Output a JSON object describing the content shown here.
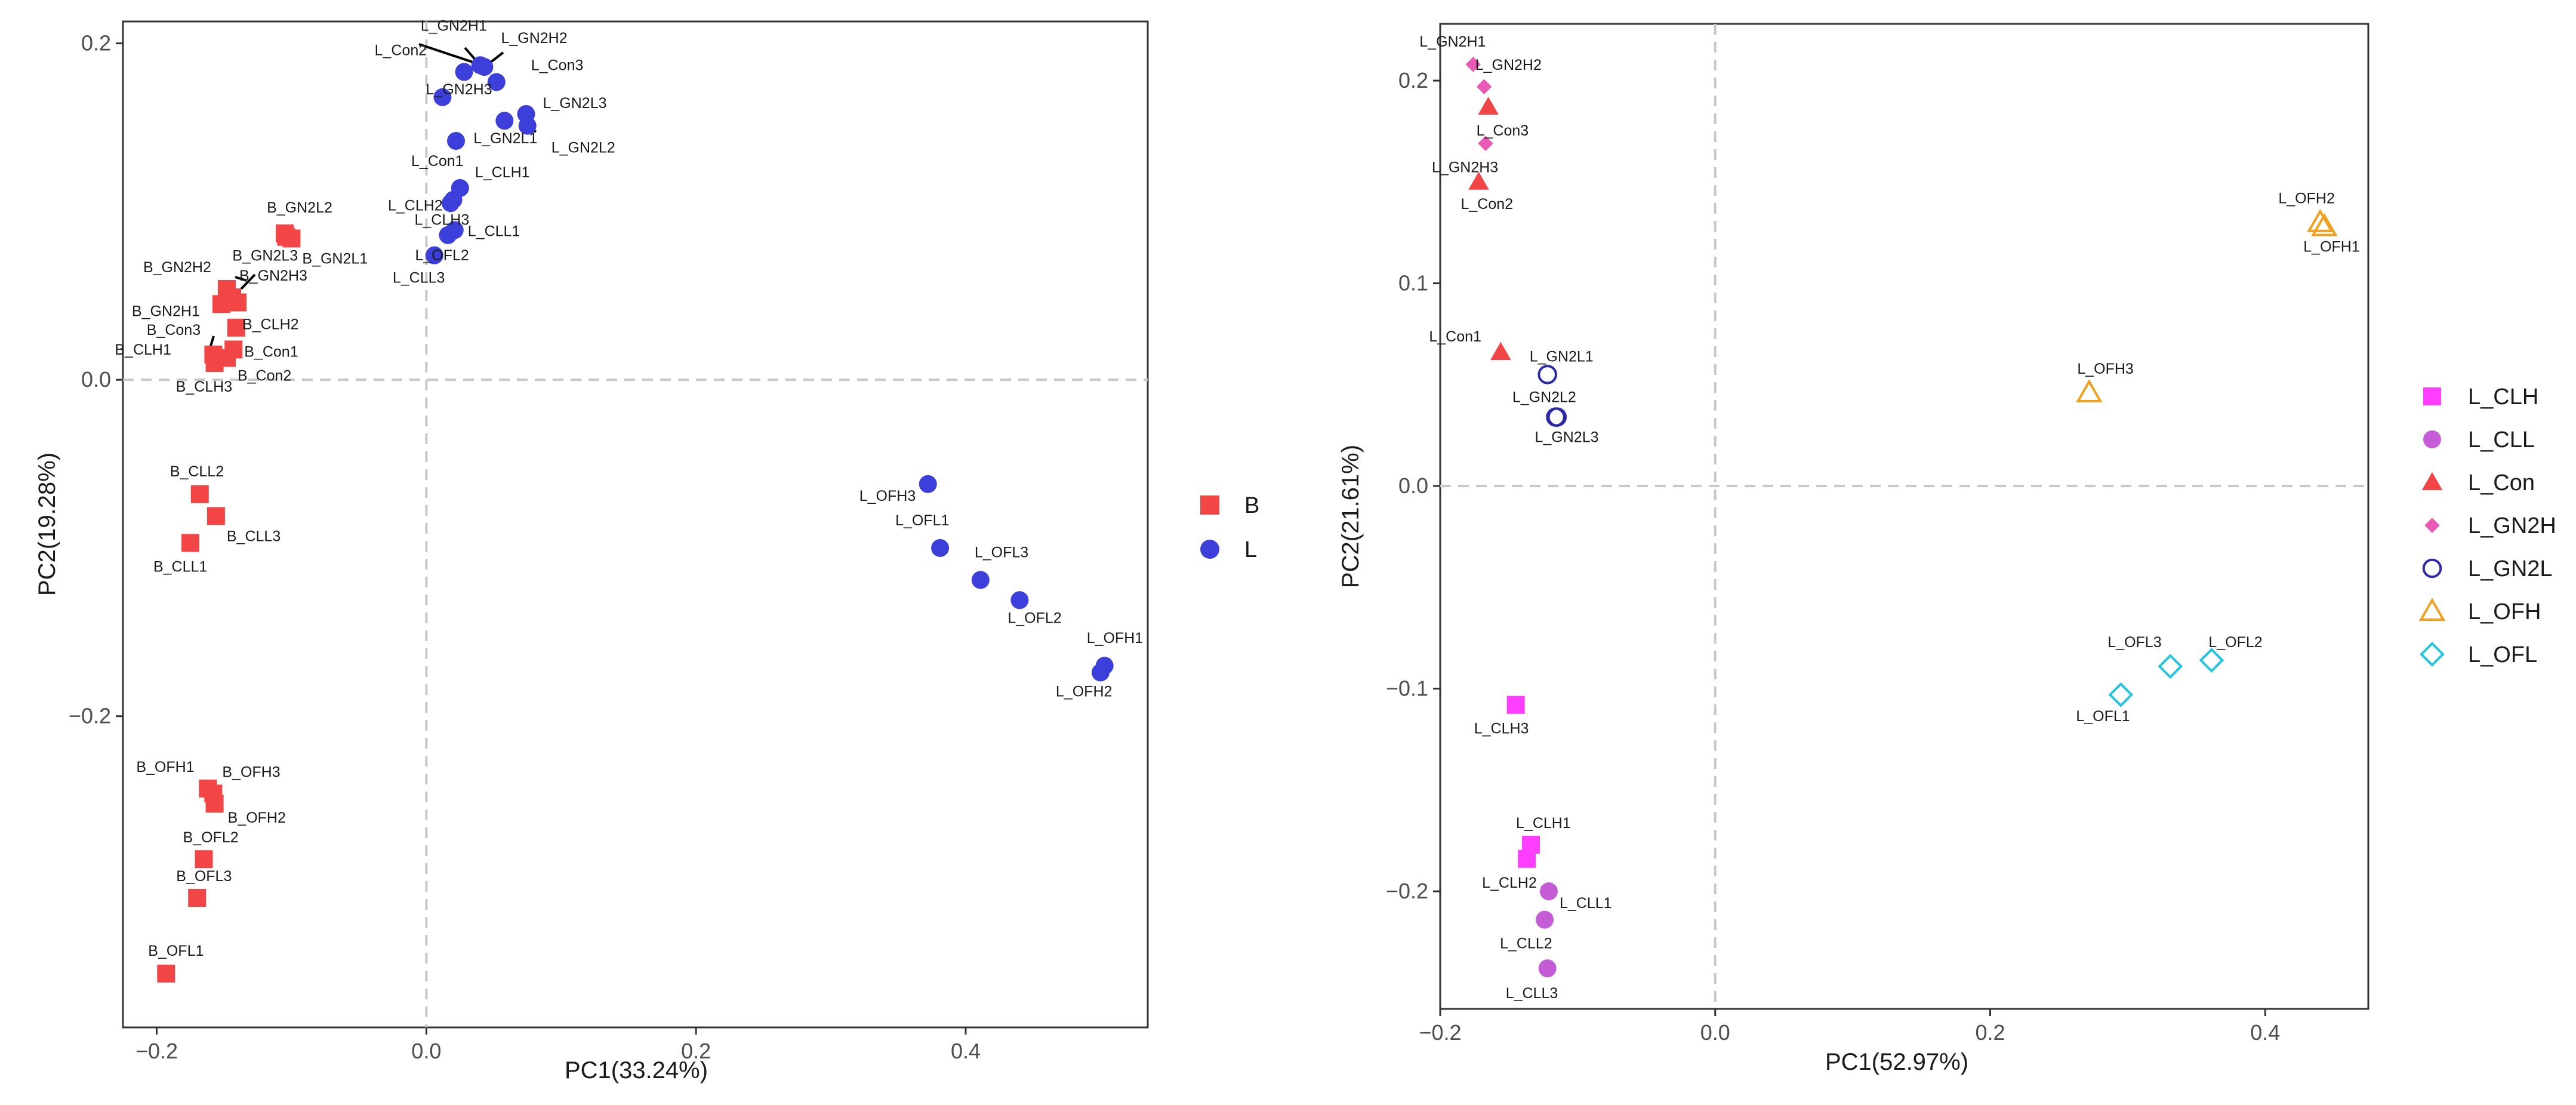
{
  "chart_data": [
    {
      "type": "scatter",
      "xlabel": "PC1(33.24%)",
      "ylabel": "PC2(19.28%)",
      "xlim": [
        -0.225,
        0.535
      ],
      "ylim": [
        -0.385,
        0.213
      ],
      "xticks": [
        -0.2,
        0.0,
        0.2,
        0.4
      ],
      "xtick_labels": [
        "−0.2",
        "0.0",
        "0.2",
        "0.4"
      ],
      "yticks": [
        -0.2,
        0.0,
        0.2
      ],
      "ytick_labels": [
        "−0.2",
        "0.0",
        "0.2"
      ],
      "grid": false,
      "reference_lines": {
        "x": 0,
        "y": 0
      },
      "legend_position": "right",
      "legend": [
        {
          "label": "B",
          "shape": "square",
          "color": "#f24545"
        },
        {
          "label": "L",
          "shape": "circle",
          "color": "#3c3fd9"
        }
      ],
      "series": [
        {
          "name": "B",
          "points": [
            {
              "label": "B_GN2L2",
              "x": -0.105,
              "y": 0.087
            },
            {
              "label": "B_GN2L3",
              "x": -0.104,
              "y": 0.085
            },
            {
              "label": "B_GN2L1",
              "x": -0.1,
              "y": 0.084
            },
            {
              "label": "B_GN2H2",
              "x": -0.148,
              "y": 0.054
            },
            {
              "label": "B_GN2H3",
              "x": -0.144,
              "y": 0.049
            },
            {
              "label": "B_GN2H1",
              "x": -0.152,
              "y": 0.045
            },
            {
              "label": "B_CLH2",
              "x": -0.14,
              "y": 0.046
            },
            {
              "label": "B_Con3",
              "x": -0.141,
              "y": 0.031
            },
            {
              "label": "B_Con1",
              "x": -0.143,
              "y": 0.018
            },
            {
              "label": "B_CLH1",
              "x": -0.158,
              "y": 0.015
            },
            {
              "label": "B_Con2",
              "x": -0.148,
              "y": 0.013
            },
            {
              "label": "B_CLH3",
              "x": -0.157,
              "y": 0.01
            },
            {
              "label": "B_CLL2",
              "x": -0.168,
              "y": -0.068
            },
            {
              "label": "B_CLL3",
              "x": -0.156,
              "y": -0.081
            },
            {
              "label": "B_CLL1",
              "x": -0.175,
              "y": -0.097
            },
            {
              "label": "B_OFH1",
              "x": -0.162,
              "y": -0.243
            },
            {
              "label": "B_OFH3",
              "x": -0.158,
              "y": -0.246
            },
            {
              "label": "B_OFH2",
              "x": -0.157,
              "y": -0.252
            },
            {
              "label": "B_OFL2",
              "x": -0.165,
              "y": -0.285
            },
            {
              "label": "B_OFL3",
              "x": -0.17,
              "y": -0.308
            },
            {
              "label": "B_OFL1",
              "x": -0.193,
              "y": -0.353
            }
          ]
        },
        {
          "name": "L",
          "points": [
            {
              "label": "L_GN2H1",
              "x": 0.04,
              "y": 0.187
            },
            {
              "label": "L_GN2H2",
              "x": 0.043,
              "y": 0.186
            },
            {
              "label": "L_Con2",
              "x": 0.028,
              "y": 0.183
            },
            {
              "label": "L_Con3",
              "x": 0.052,
              "y": 0.177
            },
            {
              "label": "L_GN2H3",
              "x": 0.012,
              "y": 0.168
            },
            {
              "label": "L_Con1",
              "x": 0.022,
              "y": 0.142
            },
            {
              "label": "L_GN2L3",
              "x": 0.074,
              "y": 0.158
            },
            {
              "label": "L_GN2L1",
              "x": 0.058,
              "y": 0.154
            },
            {
              "label": "L_GN2L2",
              "x": 0.075,
              "y": 0.151
            },
            {
              "label": "L_CLH1",
              "x": 0.025,
              "y": 0.114
            },
            {
              "label": "L_CLH3",
              "x": 0.02,
              "y": 0.107
            },
            {
              "label": "L_CLH2",
              "x": 0.018,
              "y": 0.105
            },
            {
              "label": "L_CLL1",
              "x": 0.021,
              "y": 0.089
            },
            {
              "label": "L_OFL2",
              "x": 0.016,
              "y": 0.086
            },
            {
              "label": "L_CLL3",
              "x": 0.006,
              "y": 0.074
            },
            {
              "label": "L_OFH3",
              "x": 0.372,
              "y": -0.062
            },
            {
              "label": "L_OFL1",
              "x": 0.381,
              "y": -0.1
            },
            {
              "label": "L_OFL3",
              "x": 0.411,
              "y": -0.119
            },
            {
              "label": "L_OFL2",
              "x": 0.44,
              "y": -0.131
            },
            {
              "label": "L_OFH1",
              "x": 0.503,
              "y": -0.17
            },
            {
              "label": "L_OFH2",
              "x": 0.5,
              "y": -0.174
            }
          ]
        }
      ]
    },
    {
      "type": "scatter",
      "xlabel": "PC1(52.97%)",
      "ylabel": "PC2(21.61%)",
      "xlim": [
        -0.2,
        0.475
      ],
      "ylim": [
        -0.258,
        0.228
      ],
      "xticks": [
        -0.2,
        0.0,
        0.2,
        0.4
      ],
      "xtick_labels": [
        "−0.2",
        "0.0",
        "0.2",
        "0.4"
      ],
      "yticks": [
        -0.2,
        -0.1,
        0.0,
        0.1,
        0.2
      ],
      "ytick_labels": [
        "−0.2",
        "−0.1",
        "0.0",
        "0.1",
        "0.2"
      ],
      "grid": false,
      "reference_lines": {
        "x": 0,
        "y": 0
      },
      "legend_position": "right",
      "legend": [
        {
          "label": "L_CLH",
          "shape": "square",
          "color": "#ff3dff"
        },
        {
          "label": "L_CLL",
          "shape": "circle",
          "color": "#c45cd6"
        },
        {
          "label": "L_Con",
          "shape": "triangle",
          "color": "#f24545"
        },
        {
          "label": "L_GN2H",
          "shape": "diamond",
          "color": "#e85ab5"
        },
        {
          "label": "L_GN2L",
          "shape": "open-circle",
          "color": "#2a2aa8"
        },
        {
          "label": "L_OFH",
          "shape": "open-triangle",
          "color": "#f0a020"
        },
        {
          "label": "L_OFL",
          "shape": "open-diamond",
          "color": "#22c4e0"
        }
      ],
      "series": [
        {
          "name": "L_CLH",
          "points": [
            {
              "label": "L_CLH3",
              "x": -0.145,
              "y": -0.108
            },
            {
              "label": "L_CLH1",
              "x": -0.134,
              "y": -0.177
            },
            {
              "label": "L_CLH2",
              "x": -0.137,
              "y": -0.184
            }
          ]
        },
        {
          "name": "L_CLL",
          "points": [
            {
              "label": "L_CLL1",
              "x": -0.121,
              "y": -0.2
            },
            {
              "label": "L_CLL2",
              "x": -0.124,
              "y": -0.214
            },
            {
              "label": "L_CLL3",
              "x": -0.122,
              "y": -0.238
            }
          ]
        },
        {
          "name": "L_Con",
          "points": [
            {
              "label": "L_Con3",
              "x": -0.165,
              "y": 0.187
            },
            {
              "label": "L_Con2",
              "x": -0.172,
              "y": 0.15
            },
            {
              "label": "L_Con1",
              "x": -0.156,
              "y": 0.066
            }
          ]
        },
        {
          "name": "L_GN2H",
          "points": [
            {
              "label": "L_GN2H1",
              "x": -0.176,
              "y": 0.208
            },
            {
              "label": "L_GN2H2",
              "x": -0.168,
              "y": 0.197
            },
            {
              "label": "L_GN2H3",
              "x": -0.167,
              "y": 0.169
            }
          ]
        },
        {
          "name": "L_GN2L",
          "points": [
            {
              "label": "L_GN2L1",
              "x": -0.122,
              "y": 0.055
            },
            {
              "label": "L_GN2L2",
              "x": -0.115,
              "y": 0.034
            },
            {
              "label": "L_GN2L3",
              "x": -0.116,
              "y": 0.034
            }
          ]
        },
        {
          "name": "L_OFH",
          "points": [
            {
              "label": "L_OFH2",
              "x": 0.44,
              "y": 0.13
            },
            {
              "label": "L_OFH1",
              "x": 0.443,
              "y": 0.128
            },
            {
              "label": "L_OFH3",
              "x": 0.272,
              "y": 0.046
            }
          ]
        },
        {
          "name": "L_OFL",
          "points": [
            {
              "label": "L_OFL2",
              "x": 0.361,
              "y": -0.086
            },
            {
              "label": "L_OFL3",
              "x": 0.331,
              "y": -0.089
            },
            {
              "label": "L_OFL1",
              "x": 0.295,
              "y": -0.103
            }
          ]
        }
      ]
    }
  ]
}
